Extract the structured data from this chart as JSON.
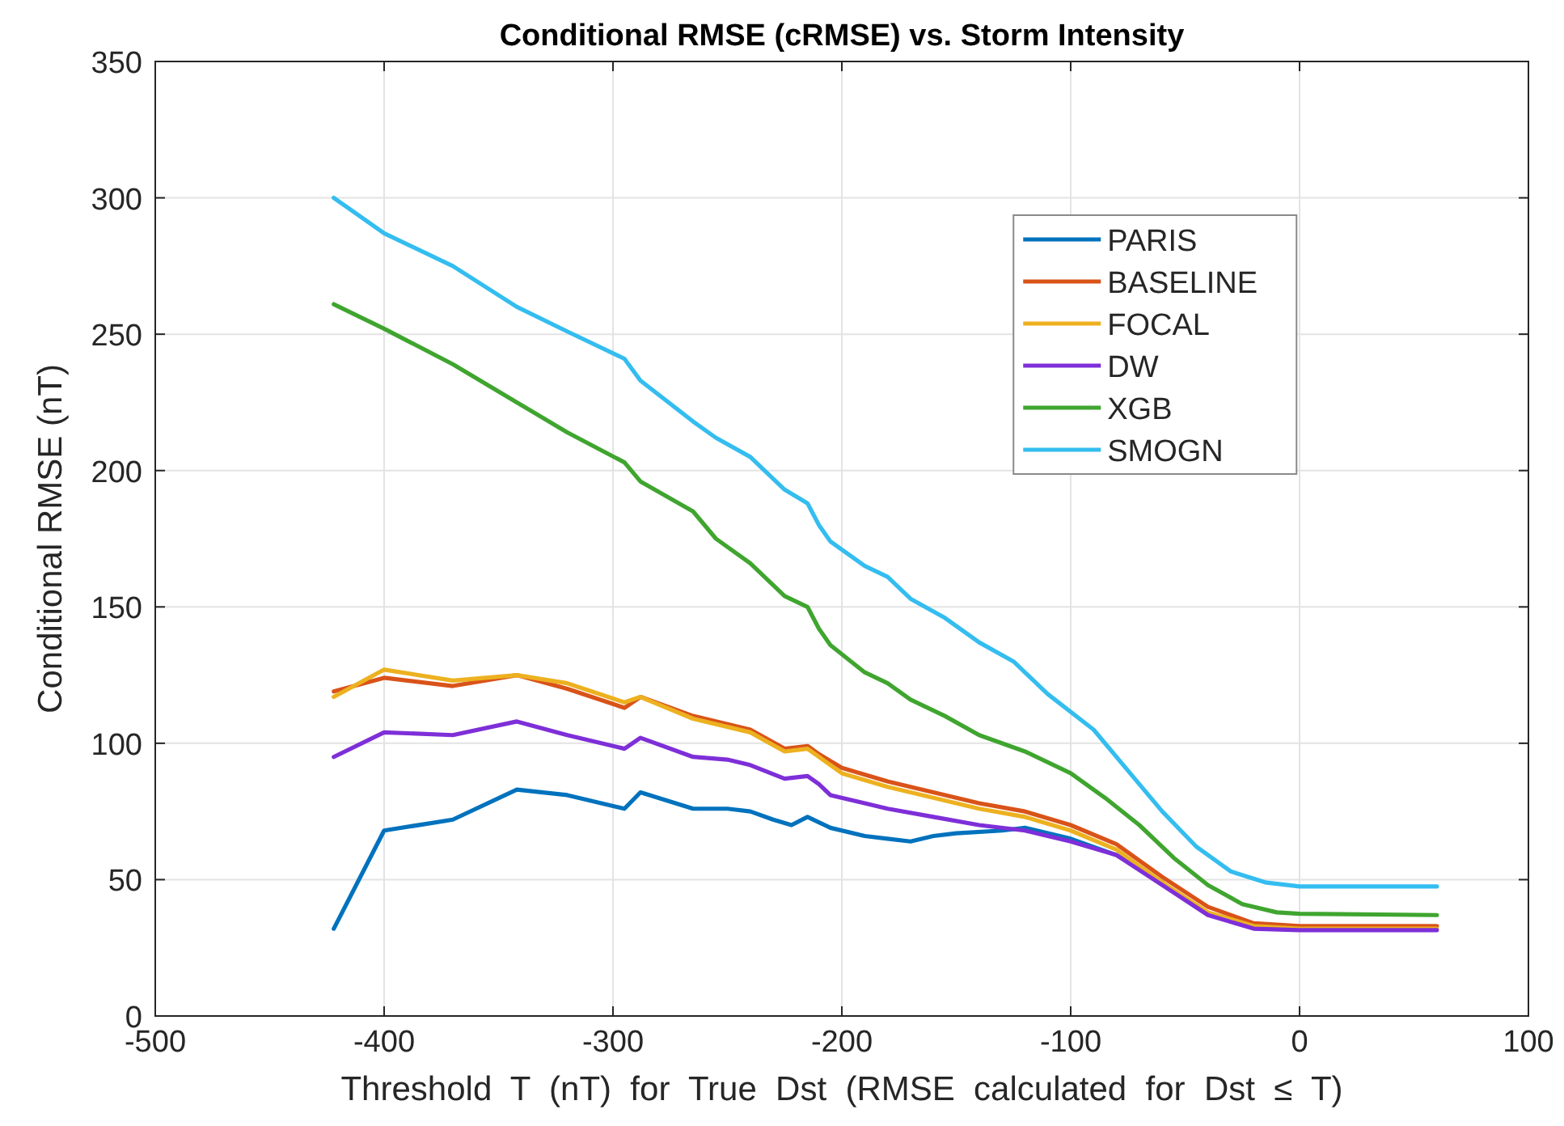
{
  "chart_data": {
    "type": "line",
    "title": "Conditional RMSE (cRMSE) vs. Storm Intensity",
    "xlabel": "Threshold  T  (nT)  for  True  Dst  (RMSE  calculated  for  Dst  ≤  T)",
    "ylabel": "Conditional RMSE (nT)",
    "xlim": [
      -500,
      100
    ],
    "xticks": [
      -500,
      -400,
      -300,
      -200,
      -100,
      0,
      100
    ],
    "ylim": [
      0,
      350
    ],
    "yticks": [
      0,
      50,
      100,
      150,
      200,
      250,
      300,
      350
    ],
    "grid": true,
    "legend": "top right",
    "line_style": "solid",
    "series": [
      {
        "name": "PARIS",
        "color": "#0072bd",
        "x": [
          -422,
          -400,
          -370,
          -342,
          -320,
          -295,
          -288,
          -265,
          -250,
          -240,
          -230,
          -222,
          -215,
          -210,
          -205,
          -190,
          -180,
          -170,
          -160,
          -150,
          -130,
          -120,
          -100,
          -80,
          -60
        ],
        "values": [
          32,
          68,
          72,
          83,
          81,
          76,
          82,
          76,
          76,
          75,
          72,
          70,
          73,
          71,
          69,
          66,
          65,
          64,
          66,
          67,
          68,
          69,
          65,
          59,
          49
        ]
      },
      {
        "name": "BASELINE",
        "color": "#d95319",
        "x": [
          -422,
          -400,
          -370,
          -342,
          -320,
          -295,
          -288,
          -265,
          -240,
          -225,
          -215,
          -210,
          -200,
          -180,
          -160,
          -140,
          -120,
          -100,
          -80,
          -60,
          -40,
          -20,
          0,
          60
        ],
        "values": [
          119,
          124,
          121,
          125,
          120,
          113,
          117,
          110,
          105,
          98,
          99,
          96,
          91,
          86,
          82,
          78,
          75,
          70,
          63,
          51,
          40,
          34,
          33,
          33
        ]
      },
      {
        "name": "FOCAL",
        "color": "#edb120",
        "x": [
          -422,
          -400,
          -370,
          -342,
          -320,
          -295,
          -288,
          -265,
          -240,
          -225,
          -215,
          -210,
          -200,
          -180,
          -160,
          -140,
          -120,
          -100,
          -80,
          -60,
          -40,
          -20,
          0,
          60
        ],
        "values": [
          117,
          127,
          123,
          125,
          122,
          115,
          117,
          109,
          104,
          97,
          98,
          95,
          89,
          84,
          80,
          76,
          73,
          68,
          61,
          49,
          38,
          33,
          32,
          32
        ]
      },
      {
        "name": "DW",
        "color": "#7e2fd8",
        "x": [
          -422,
          -400,
          -370,
          -342,
          -320,
          -295,
          -288,
          -265,
          -250,
          -240,
          -225,
          -215,
          -210,
          -205,
          -190,
          -180,
          -160,
          -140,
          -120,
          -100,
          -80,
          -60,
          -40,
          -20,
          0,
          60
        ],
        "values": [
          95,
          104,
          103,
          108,
          103,
          98,
          102,
          95,
          94,
          92,
          87,
          88,
          85,
          81,
          78,
          76,
          73,
          70,
          68,
          64,
          59,
          48,
          37,
          32,
          31.5,
          31.5
        ]
      },
      {
        "name": "XGB",
        "color": "#3fa52f",
        "x": [
          -422,
          -400,
          -370,
          -342,
          -320,
          -295,
          -288,
          -265,
          -255,
          -240,
          -225,
          -215,
          -210,
          -205,
          -190,
          -180,
          -170,
          -155,
          -140,
          -120,
          -100,
          -85,
          -70,
          -55,
          -40,
          -25,
          -10,
          0,
          60
        ],
        "values": [
          261,
          252,
          239,
          225,
          214,
          203,
          196,
          185,
          175,
          166,
          154,
          150,
          142,
          136,
          126,
          122,
          116,
          110,
          103,
          97,
          89,
          80,
          70,
          58,
          48,
          41,
          38,
          37.5,
          37
        ]
      },
      {
        "name": "SMOGN",
        "color": "#34bdef",
        "x": [
          -422,
          -400,
          -370,
          -342,
          -320,
          -295,
          -288,
          -265,
          -255,
          -240,
          -225,
          -215,
          -210,
          -205,
          -190,
          -180,
          -170,
          -155,
          -140,
          -125,
          -110,
          -90,
          -75,
          -60,
          -45,
          -30,
          -15,
          0,
          60
        ],
        "values": [
          300,
          287,
          275,
          260,
          251,
          241,
          233,
          218,
          212,
          205,
          193,
          188,
          180,
          174,
          165,
          161,
          153,
          146,
          137,
          130,
          118,
          105,
          90,
          75,
          62,
          53,
          49,
          47.5,
          47.5
        ]
      }
    ]
  }
}
